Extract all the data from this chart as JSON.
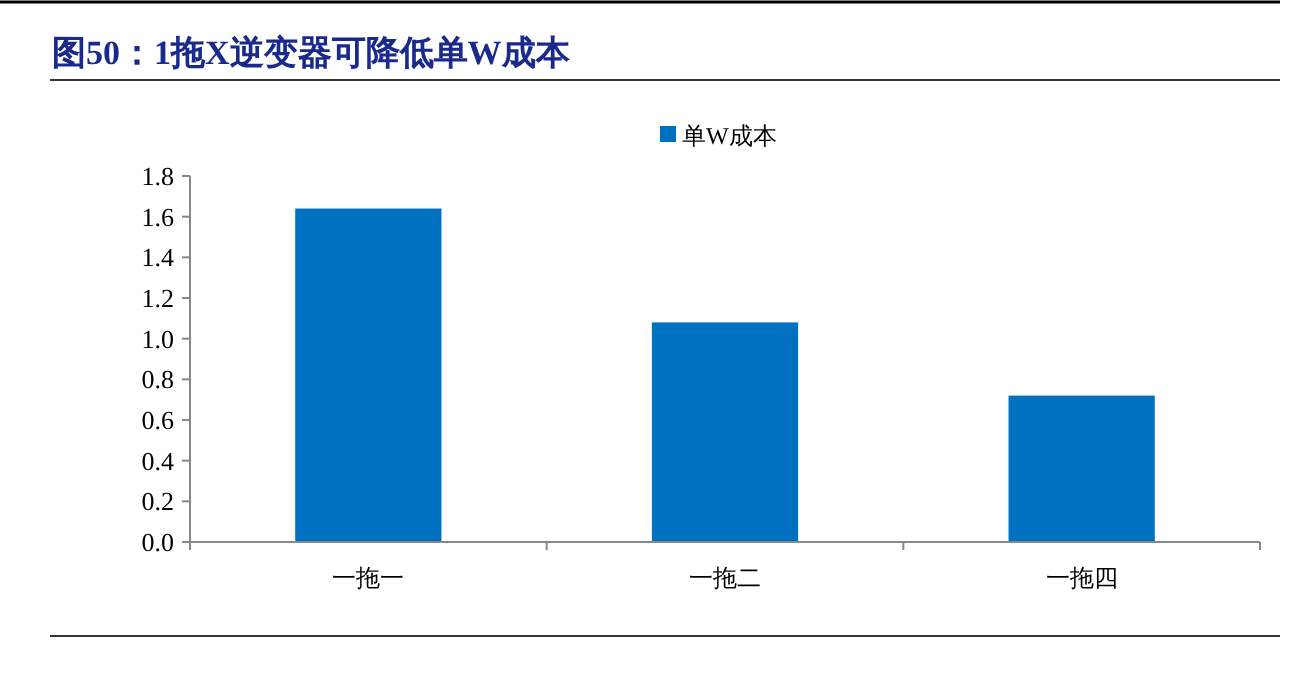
{
  "chart_data": {
    "type": "bar",
    "title": "图50：1拖X逆变器可降低单W成本",
    "categories": [
      "一拖一",
      "一拖二",
      "一拖四"
    ],
    "series": [
      {
        "name": "单W成本",
        "color": "#0070c0",
        "values": [
          1.64,
          1.08,
          0.72
        ]
      }
    ],
    "ylim": [
      0,
      1.8
    ],
    "yticks": [
      {
        "value": 0,
        "label": "0.0"
      },
      0.2,
      0.4,
      0.6,
      0.8,
      {
        "value": 1,
        "label": "1.0"
      },
      1.2,
      1.4,
      1.6,
      1.8
    ],
    "grid": false,
    "legend": "top"
  }
}
